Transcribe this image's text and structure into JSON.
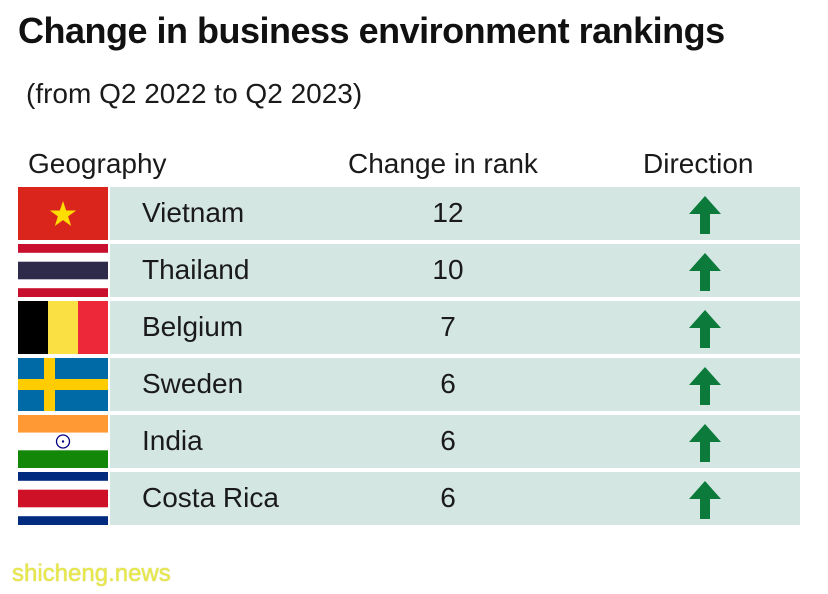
{
  "chart_data": {
    "type": "table",
    "title": "Change in business environment rankings",
    "subtitle": "(from Q2 2022 to Q2 2023)",
    "columns": [
      "Geography",
      "Change in rank",
      "Direction"
    ],
    "rows": [
      {
        "geography": "Vietnam",
        "change": 12,
        "direction": "up",
        "flag": "vietnam-flag"
      },
      {
        "geography": "Thailand",
        "change": 10,
        "direction": "up",
        "flag": "thailand-flag"
      },
      {
        "geography": "Belgium",
        "change": 7,
        "direction": "up",
        "flag": "belgium-flag"
      },
      {
        "geography": "Sweden",
        "change": 6,
        "direction": "up",
        "flag": "sweden-flag"
      },
      {
        "geography": "India",
        "change": 6,
        "direction": "up",
        "flag": "india-flag"
      },
      {
        "geography": "Costa Rica",
        "change": 6,
        "direction": "up",
        "flag": "costa-rica-flag"
      }
    ]
  },
  "colors": {
    "row_band": "#d3e6e2",
    "arrow_up": "#0b7a3b",
    "watermark": "#e8e84a"
  },
  "watermark": "shicheng.news"
}
